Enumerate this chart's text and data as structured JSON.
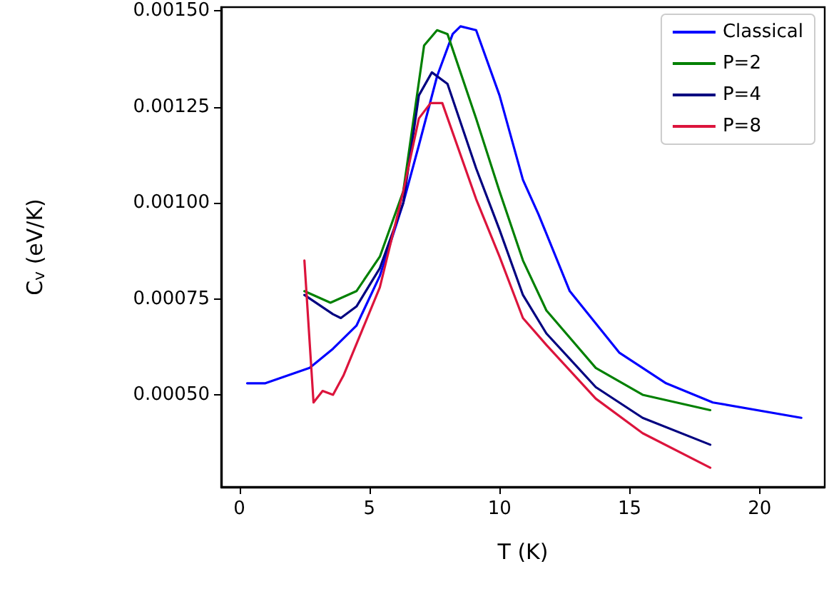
{
  "chart_data": {
    "type": "line",
    "xlabel": "T (K)",
    "ylabel": "C$_{v}$ (eV/K)",
    "xlim": [
      -0.7,
      22.5
    ],
    "ylim": [
      0.00026,
      0.00151
    ],
    "xticks": [
      0,
      5,
      10,
      15,
      20
    ],
    "yticks": [
      {
        "value": 0.0005,
        "label": "0.00050"
      },
      {
        "value": 0.00075,
        "label": "0.00075"
      },
      {
        "value": 0.001,
        "label": "0.00100"
      },
      {
        "value": 0.00125,
        "label": "0.00125"
      },
      {
        "value": 0.0015,
        "label": "0.00150"
      }
    ],
    "legend": "top right",
    "marker": "none",
    "line_style": "solid",
    "series": [
      {
        "name": "Classical",
        "color": "#0000ff",
        "x": [
          0.3,
          1.0,
          2.7,
          3.6,
          4.5,
          5.4,
          6.3,
          6.9,
          7.6,
          8.2,
          8.5,
          9.1,
          10,
          10.9,
          11.5,
          12.7,
          14.6,
          16.4,
          18.2,
          21.6
        ],
        "values": [
          0.00053,
          0.00053,
          0.00057,
          0.00062,
          0.00068,
          0.00081,
          0.001,
          0.00115,
          0.00133,
          0.00144,
          0.00146,
          0.00145,
          0.00128,
          0.00106,
          0.00097,
          0.00077,
          0.00061,
          0.00053,
          0.00048,
          0.00044
        ]
      },
      {
        "name": "P=2",
        "color": "#008000",
        "x": [
          2.5,
          3.5,
          4.5,
          5.4,
          6.3,
          7.1,
          7.6,
          8.0,
          9.1,
          10,
          10.9,
          11.8,
          13.7,
          15.5,
          18.1
        ],
        "values": [
          0.00077,
          0.00074,
          0.00077,
          0.00086,
          0.00103,
          0.00141,
          0.00145,
          0.00144,
          0.00122,
          0.00103,
          0.00085,
          0.00072,
          0.00057,
          0.0005,
          0.00046
        ]
      },
      {
        "name": "P=4",
        "color": "#000080",
        "x": [
          2.5,
          3.6,
          3.9,
          4.5,
          5.4,
          6.3,
          6.9,
          7.4,
          8.0,
          9.1,
          10,
          10.9,
          11.8,
          13.7,
          15.5,
          18.1
        ],
        "values": [
          0.00076,
          0.00071,
          0.0007,
          0.00073,
          0.00083,
          0.001,
          0.00128,
          0.00134,
          0.00131,
          0.00109,
          0.00093,
          0.00076,
          0.00066,
          0.00052,
          0.00044,
          0.00037
        ]
      },
      {
        "name": "P=8",
        "color": "#dc143c",
        "x": [
          2.5,
          2.85,
          3.2,
          3.6,
          4.0,
          5.4,
          6.3,
          6.9,
          7.35,
          7.8,
          9.1,
          10,
          10.9,
          11.8,
          13.7,
          15.5,
          18.1
        ],
        "values": [
          0.00085,
          0.00048,
          0.00051,
          0.0005,
          0.00055,
          0.00078,
          0.00103,
          0.00122,
          0.00126,
          0.00126,
          0.00101,
          0.00086,
          0.0007,
          0.00063,
          0.00049,
          0.0004,
          0.00031
        ]
      }
    ]
  }
}
